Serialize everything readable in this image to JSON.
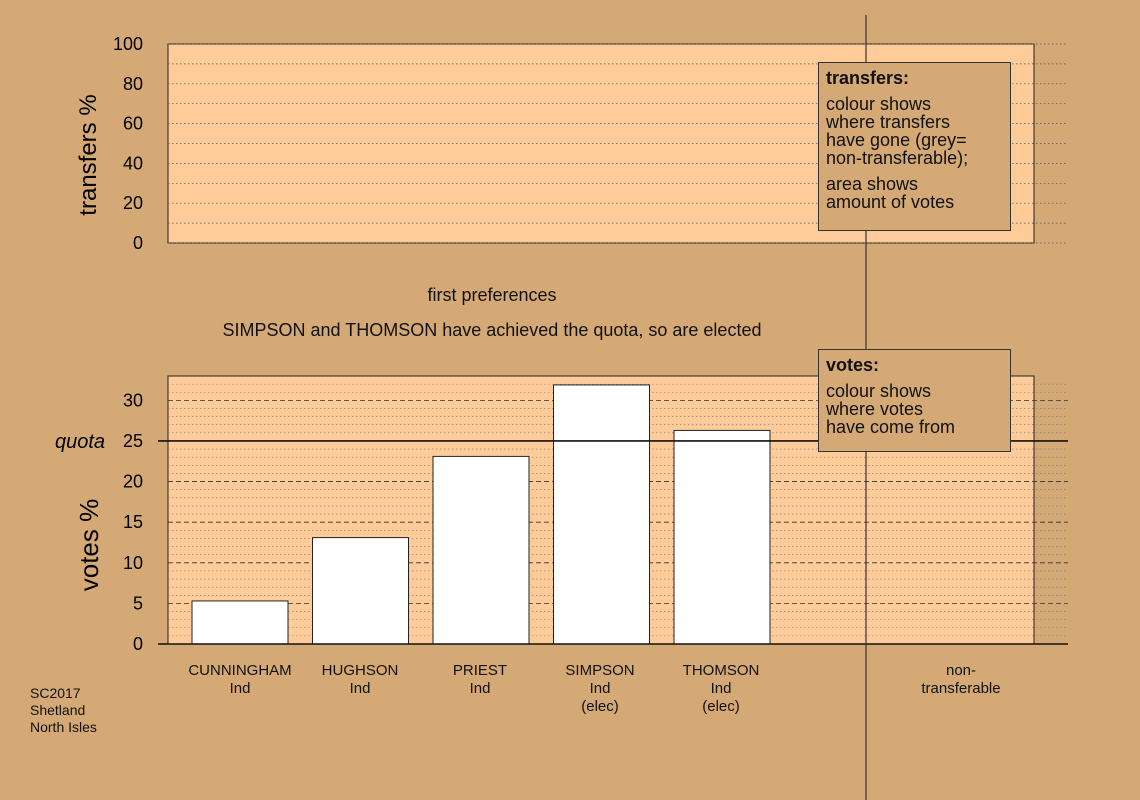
{
  "chart_data": [
    {
      "type": "bar",
      "title": "",
      "ylabel": "transfers %",
      "ylim": [
        0,
        100
      ],
      "yticks": [
        0,
        20,
        40,
        60,
        80,
        100
      ],
      "grid": true,
      "categories": [],
      "values": []
    },
    {
      "type": "bar",
      "ylabel": "votes %",
      "ylim": [
        0,
        33
      ],
      "yticks": [
        0,
        5,
        10,
        15,
        20,
        25,
        30
      ],
      "grid": true,
      "quota": 25,
      "quota_label": "quota",
      "categories": [
        "CUNNINGHAM",
        "HUGHSON",
        "PRIEST",
        "SIMPSON",
        "THOMSON"
      ],
      "values": [
        5.3,
        13.1,
        23.1,
        31.9,
        26.3
      ],
      "bar_color": "#ffffff"
    }
  ],
  "stage": {
    "title": "first preferences",
    "note": "SIMPSON and THOMSON have achieved the quota, so are elected"
  },
  "candidates": [
    {
      "name": "CUNNINGHAM",
      "party": "Ind",
      "status": ""
    },
    {
      "name": "HUGHSON",
      "party": "Ind",
      "status": ""
    },
    {
      "name": "PRIEST",
      "party": "Ind",
      "status": ""
    },
    {
      "name": "SIMPSON",
      "party": "Ind",
      "status": "(elec)"
    },
    {
      "name": "THOMSON",
      "party": "Ind",
      "status": "(elec)"
    }
  ],
  "nontransferable": {
    "line1": "non-",
    "line2": "transferable"
  },
  "legend_transfers": {
    "title": "transfers:",
    "lines1": [
      "colour shows",
      "where transfers",
      "have gone (grey=",
      "non-transferable);"
    ],
    "lines2": [
      "area shows",
      "amount of votes"
    ]
  },
  "legend_votes": {
    "title": "votes:",
    "lines": [
      "colour shows",
      "where votes",
      "have come from"
    ]
  },
  "source": {
    "line1": "SC2017",
    "line2": "Shetland",
    "line3": "North Isles"
  },
  "colors": {
    "background": "#d4a976",
    "transfer_panel": "#ffcc99",
    "bars": "#ffffff"
  }
}
